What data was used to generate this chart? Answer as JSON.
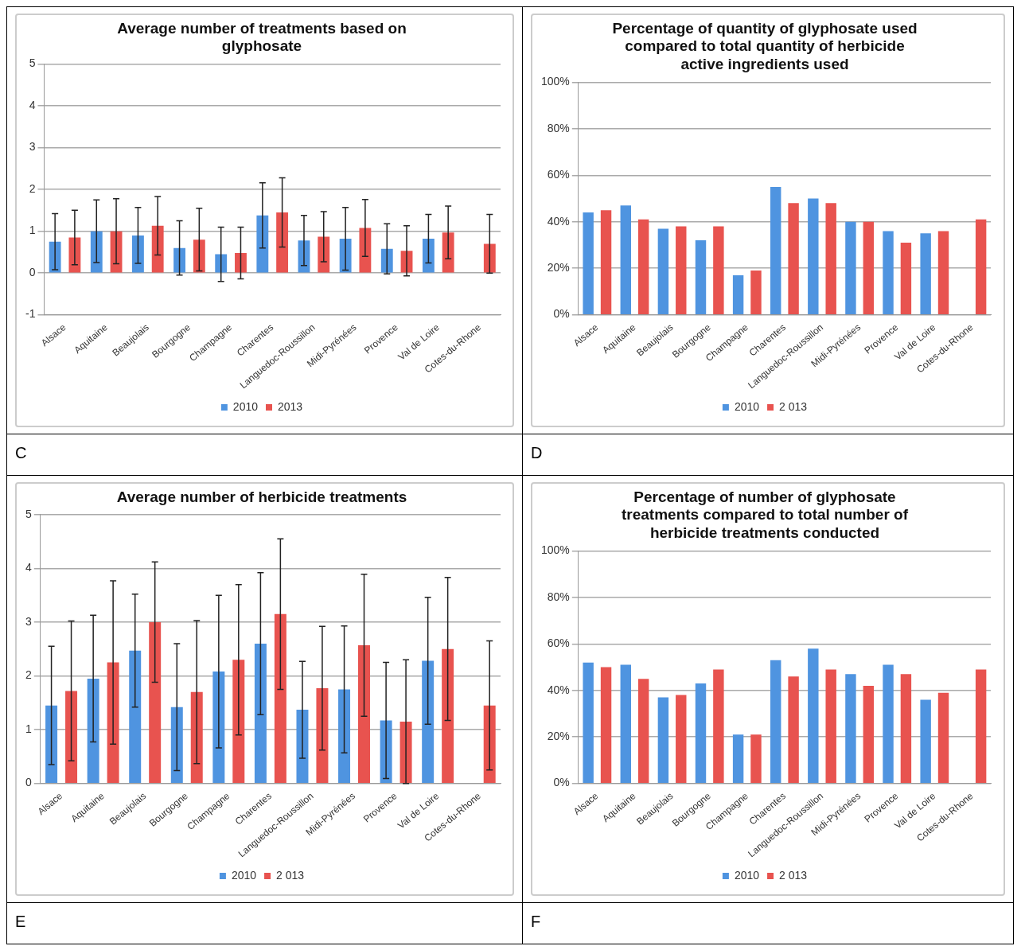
{
  "chart_data": [
    {
      "type": "bar",
      "title": "Average number of treatments based on glyphosate",
      "categories": [
        "Alsace",
        "Aquitaine",
        "Beaujolais",
        "Bourgogne",
        "Champagne",
        "Charentes",
        "Languedoc-Roussillon",
        "Midi-Pyrénées",
        "Provence",
        "Val de Loire",
        "Cotes-du-Rhone"
      ],
      "series": [
        {
          "name": "2010",
          "color": "#4f94e0",
          "values": [
            0.75,
            1.0,
            0.9,
            0.6,
            0.45,
            1.38,
            0.78,
            0.82,
            0.58,
            0.82,
            null
          ],
          "errors": [
            0.67,
            0.75,
            0.67,
            0.65,
            0.65,
            0.78,
            0.6,
            0.75,
            0.6,
            0.58,
            null
          ]
        },
        {
          "name": "2013",
          "color": "#e8534f",
          "values": [
            0.85,
            1.0,
            1.13,
            0.8,
            0.48,
            1.45,
            0.87,
            1.08,
            0.53,
            0.97,
            0.7
          ],
          "errors": [
            0.65,
            0.78,
            0.7,
            0.75,
            0.62,
            0.83,
            0.6,
            0.68,
            0.6,
            0.63,
            0.7
          ]
        }
      ],
      "ylim": [
        -1,
        5
      ],
      "yticks": [
        -1,
        0,
        1,
        2,
        3,
        4,
        5
      ],
      "grid": "y",
      "legend": "bottom",
      "annotations": [
        "C"
      ]
    },
    {
      "type": "bar",
      "title": "Percentage of quantity of glyphosate used compared to total quantity of herbicide active ingredients used",
      "categories": [
        "Alsace",
        "Aquitaine",
        "Beaujolais",
        "Bourgogne",
        "Champagne",
        "Charentes",
        "Languedoc-Roussillon",
        "Midi-Pyrénées",
        "Provence",
        "Val de Loire",
        "Cotes-du-Rhone"
      ],
      "series": [
        {
          "name": "2010",
          "color": "#4f94e0",
          "values": [
            44,
            47,
            37,
            32,
            17,
            55,
            50,
            40,
            36,
            35,
            null
          ]
        },
        {
          "name": "2 013",
          "color": "#e8534f",
          "values": [
            45,
            41,
            38,
            38,
            19,
            48,
            48,
            40,
            31,
            36,
            41
          ]
        }
      ],
      "ylim": [
        0,
        100
      ],
      "yticks": [
        {
          "value": 0,
          "label": "0%"
        },
        {
          "value": 20,
          "label": "20%"
        },
        {
          "value": 40,
          "label": "40%"
        },
        {
          "value": 60,
          "label": "60%"
        },
        {
          "value": 80,
          "label": "80%"
        },
        {
          "value": 100,
          "label": "100%"
        }
      ],
      "grid": "y",
      "legend": "bottom",
      "annotations": [
        "D"
      ]
    },
    {
      "type": "bar",
      "title": "Average number of herbicide treatments",
      "categories": [
        "Alsace",
        "Aquitaine",
        "Beaujolais",
        "Bourgogne",
        "Champagne",
        "Charentes",
        "Languedoc-Roussillon",
        "Midi-Pyrénées",
        "Provence",
        "Val de Loire",
        "Cotes-du-Rhone"
      ],
      "series": [
        {
          "name": "2010",
          "color": "#4f94e0",
          "values": [
            1.45,
            1.95,
            2.47,
            1.42,
            2.08,
            2.6,
            1.37,
            1.75,
            1.17,
            2.28,
            null
          ],
          "errors": [
            1.1,
            1.18,
            1.05,
            1.18,
            1.42,
            1.32,
            0.9,
            1.18,
            1.08,
            1.18,
            null
          ]
        },
        {
          "name": "2 013",
          "color": "#e8534f",
          "values": [
            1.72,
            2.25,
            3.0,
            1.7,
            2.3,
            3.15,
            1.77,
            2.57,
            1.15,
            2.5,
            1.45
          ],
          "errors": [
            1.3,
            1.52,
            1.12,
            1.33,
            1.4,
            1.4,
            1.15,
            1.32,
            1.15,
            1.33,
            1.2
          ]
        }
      ],
      "ylim": [
        0,
        5
      ],
      "yticks": [
        0,
        1,
        2,
        3,
        4,
        5
      ],
      "grid": "y",
      "legend": "bottom",
      "annotations": [
        "E"
      ]
    },
    {
      "type": "bar",
      "title": "Percentage of number of glyphosate treatments compared to total number of herbicide treatments conducted",
      "categories": [
        "Alsace",
        "Aquitaine",
        "Beaujolais",
        "Bourgogne",
        "Champagne",
        "Charentes",
        "Languedoc-Roussillon",
        "Midi-Pyrénées",
        "Provence",
        "Val de Loire",
        "Cotes-du-Rhone"
      ],
      "series": [
        {
          "name": "2010",
          "color": "#4f94e0",
          "values": [
            52,
            51,
            37,
            43,
            21,
            53,
            58,
            47,
            51,
            36,
            null
          ]
        },
        {
          "name": "2 013",
          "color": "#e8534f",
          "values": [
            50,
            45,
            38,
            49,
            21,
            46,
            49,
            42,
            47,
            39,
            49
          ]
        }
      ],
      "ylim": [
        0,
        100
      ],
      "yticks": [
        {
          "value": 0,
          "label": "0%"
        },
        {
          "value": 20,
          "label": "20%"
        },
        {
          "value": 40,
          "label": "40%"
        },
        {
          "value": 60,
          "label": "60%"
        },
        {
          "value": 80,
          "label": "80%"
        },
        {
          "value": 100,
          "label": "100%"
        }
      ],
      "grid": "y",
      "legend": "bottom",
      "annotations": [
        "F"
      ]
    }
  ]
}
